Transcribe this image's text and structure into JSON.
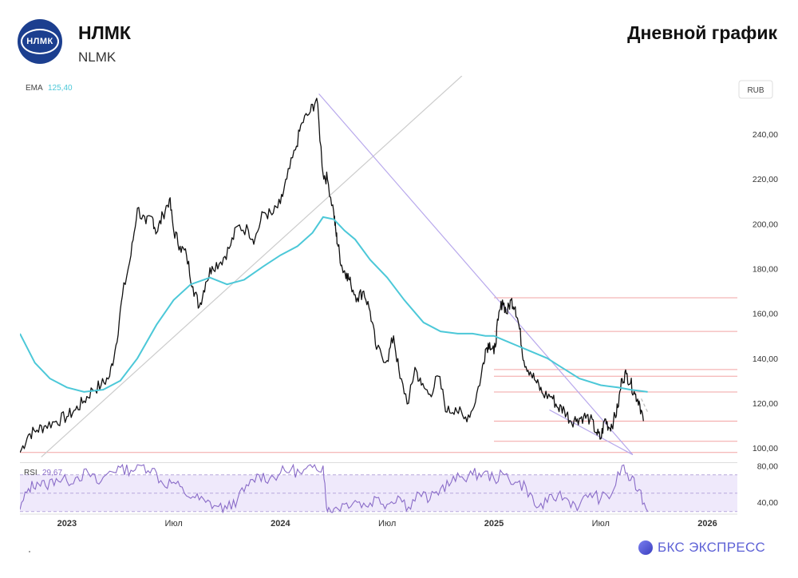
{
  "header": {
    "logo_text": "НЛМК",
    "title": "НЛМК",
    "ticker": "NLMK",
    "chart_label": "Дневной график"
  },
  "brand": {
    "name": "БКС ЭКСПРЕСС"
  },
  "chart_data": {
    "type": "line",
    "price_axis": {
      "currency": "RUB",
      "ticks": [
        "240,00",
        "220,00",
        "200,00",
        "180,00",
        "160,00",
        "140,00",
        "120,00",
        "100,00"
      ],
      "tick_values": [
        240,
        220,
        200,
        180,
        160,
        140,
        120,
        100
      ],
      "ylim": [
        94,
        266
      ]
    },
    "time_axis": {
      "ticks": [
        "2023",
        "Июл",
        "2024",
        "Июл",
        "2025",
        "Июл",
        "2026"
      ],
      "tick_times": [
        2023.0,
        2023.5,
        2024.0,
        2024.5,
        2025.0,
        2025.5,
        2026.0
      ],
      "xlim": [
        2022.78,
        2026.14
      ]
    },
    "ema": {
      "name": "EMA",
      "value_label": "125,40",
      "color": "#4cc8d8",
      "x": [
        2022.78,
        2022.85,
        2022.92,
        2023.0,
        2023.08,
        2023.17,
        2023.25,
        2023.33,
        2023.42,
        2023.5,
        2023.58,
        2023.67,
        2023.75,
        2023.83,
        2023.92,
        2024.0,
        2024.08,
        2024.15,
        2024.2,
        2024.25,
        2024.3,
        2024.35,
        2024.42,
        2024.5,
        2024.58,
        2024.67,
        2024.75,
        2024.83,
        2024.9,
        2024.96,
        2025.0,
        2025.05,
        2025.1,
        2025.15,
        2025.2,
        2025.25,
        2025.3,
        2025.35,
        2025.4,
        2025.5,
        2025.58,
        2025.64,
        2025.68,
        2025.72
      ],
      "y": [
        151,
        138,
        131,
        127,
        125,
        126,
        130,
        140,
        155,
        166,
        173,
        176,
        173,
        175,
        181,
        186,
        190,
        196,
        203,
        202,
        197,
        193,
        184,
        176,
        166,
        156,
        152,
        151,
        151,
        150,
        150,
        148,
        146,
        144,
        142,
        140,
        137,
        134,
        131,
        128,
        127,
        126,
        125.5,
        125
      ]
    },
    "price": {
      "name": "NLMK",
      "color": "#111111",
      "x": [
        2022.78,
        2022.82,
        2022.86,
        2022.9,
        2022.95,
        2023.0,
        2023.04,
        2023.08,
        2023.12,
        2023.16,
        2023.2,
        2023.23,
        2023.26,
        2023.3,
        2023.33,
        2023.37,
        2023.4,
        2023.42,
        2023.45,
        2023.48,
        2023.5,
        2023.53,
        2023.56,
        2023.59,
        2023.62,
        2023.65,
        2023.68,
        2023.72,
        2023.76,
        2023.8,
        2023.85,
        2023.88,
        2023.92,
        2023.96,
        2024.0,
        2024.03,
        2024.07,
        2024.1,
        2024.14,
        2024.17,
        2024.2,
        2024.22,
        2024.25,
        2024.26,
        2024.27,
        2024.29,
        2024.31,
        2024.33,
        2024.36,
        2024.39,
        2024.42,
        2024.45,
        2024.5,
        2024.53,
        2024.56,
        2024.6,
        2024.63,
        2024.66,
        2024.7,
        2024.74,
        2024.78,
        2024.82,
        2024.86,
        2024.9,
        2024.94,
        2024.96,
        2024.98,
        2025.0,
        2025.02,
        2025.04,
        2025.06,
        2025.08,
        2025.1,
        2025.12,
        2025.14,
        2025.17,
        2025.2,
        2025.23,
        2025.27,
        2025.3,
        2025.33,
        2025.36,
        2025.39,
        2025.42,
        2025.45,
        2025.48,
        2025.5,
        2025.52,
        2025.54,
        2025.56,
        2025.58,
        2025.6,
        2025.62,
        2025.64,
        2025.66,
        2025.68,
        2025.7
      ],
      "y": [
        98,
        106,
        108,
        110,
        112,
        114,
        117,
        121,
        126,
        128,
        132,
        146,
        168,
        186,
        207,
        200,
        203,
        196,
        204,
        211,
        197,
        190,
        186,
        172,
        163,
        174,
        181,
        183,
        189,
        199,
        197,
        193,
        205,
        204,
        209,
        220,
        233,
        245,
        250,
        256,
        222,
        220,
        205,
        196,
        190,
        180,
        178,
        173,
        167,
        170,
        161,
        144,
        139,
        150,
        131,
        120,
        136,
        128,
        124,
        132,
        116,
        118,
        113,
        117,
        132,
        144,
        147,
        142,
        157,
        166,
        160,
        166,
        163,
        153,
        139,
        134,
        129,
        124,
        123,
        118,
        117,
        112,
        113,
        114,
        113,
        107,
        104,
        113,
        109,
        112,
        118,
        131,
        133,
        129,
        124,
        121,
        112
      ]
    },
    "horizontal_levels": [
      167,
      152,
      135,
      132,
      125,
      112,
      103,
      98
    ],
    "trendlines": [
      {
        "x": [
          2022.88,
          2024.85
        ],
        "y": [
          96,
          266
        ],
        "color": "#cccccc"
      },
      {
        "x": [
          2024.18,
          2025.65
        ],
        "y": [
          258,
          97
        ],
        "color": "#b8a8ec"
      },
      {
        "x": [
          2025.26,
          2025.65
        ],
        "y": [
          117,
          97
        ],
        "color": "#b8a8ec"
      },
      {
        "x": [
          2025.69,
          2025.72
        ],
        "y": [
          122,
          116
        ],
        "color": "#bbbbbb",
        "dashed": true
      }
    ],
    "rsi": {
      "name": "RSI",
      "value_label": "29,67",
      "ticks": [
        "80,00",
        "40,00"
      ],
      "tick_values": [
        80,
        40
      ],
      "ylim": [
        28,
        82
      ],
      "band": [
        30,
        70
      ],
      "color": "#8a6cc8",
      "x": [
        2022.78,
        2022.82,
        2022.86,
        2022.9,
        2022.95,
        2023.0,
        2023.05,
        2023.1,
        2023.15,
        2023.2,
        2023.25,
        2023.3,
        2023.35,
        2023.4,
        2023.45,
        2023.5,
        2023.55,
        2023.6,
        2023.65,
        2023.7,
        2023.75,
        2023.8,
        2023.85,
        2023.9,
        2023.95,
        2024.0,
        2024.05,
        2024.1,
        2024.15,
        2024.2,
        2024.22,
        2024.25,
        2024.3,
        2024.35,
        2024.4,
        2024.45,
        2024.5,
        2024.55,
        2024.6,
        2024.65,
        2024.7,
        2024.75,
        2024.8,
        2024.85,
        2024.9,
        2024.95,
        2025.0,
        2025.05,
        2025.1,
        2025.15,
        2025.2,
        2025.25,
        2025.3,
        2025.35,
        2025.4,
        2025.45,
        2025.5,
        2025.55,
        2025.6,
        2025.64,
        2025.68,
        2025.72
      ],
      "y": [
        32,
        55,
        62,
        58,
        66,
        63,
        68,
        72,
        60,
        74,
        78,
        75,
        80,
        77,
        60,
        62,
        50,
        45,
        40,
        36,
        33,
        44,
        58,
        70,
        66,
        72,
        76,
        71,
        78,
        80,
        30,
        33,
        38,
        42,
        36,
        45,
        38,
        47,
        35,
        50,
        43,
        55,
        62,
        68,
        70,
        72,
        66,
        70,
        62,
        57,
        34,
        40,
        48,
        42,
        36,
        50,
        44,
        48,
        80,
        64,
        54,
        30
      ]
    }
  }
}
